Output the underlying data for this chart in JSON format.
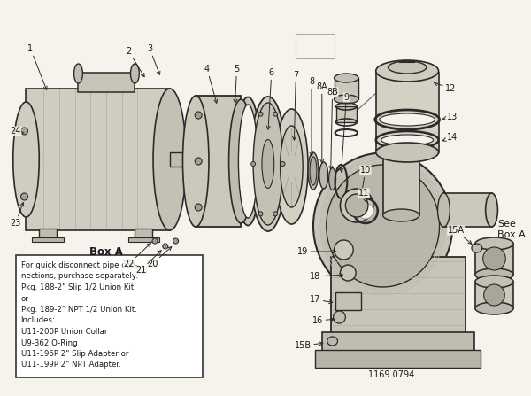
{
  "bg_color": "#f5f3ec",
  "line_color": "#2a2a2a",
  "text_color": "#1a1a1a",
  "box_color": "#ffffff",
  "box_border": "#333333",
  "part_number": "1169 0794",
  "box_a_text_lines": [
    "For quick disconnect pipe con-",
    "nections, purchase separately:",
    "Pkg. 188-2\" Slip 1/2 Union Kit",
    "or",
    "Pkg. 189-2\" NPT 1/2 Union Kit.",
    "Includes:",
    "U11-200P Union Collar",
    "U9-362 O-Ring",
    "U11-196P 2\" Slip Adapter or",
    "U11-199P 2\" NPT Adapter."
  ]
}
